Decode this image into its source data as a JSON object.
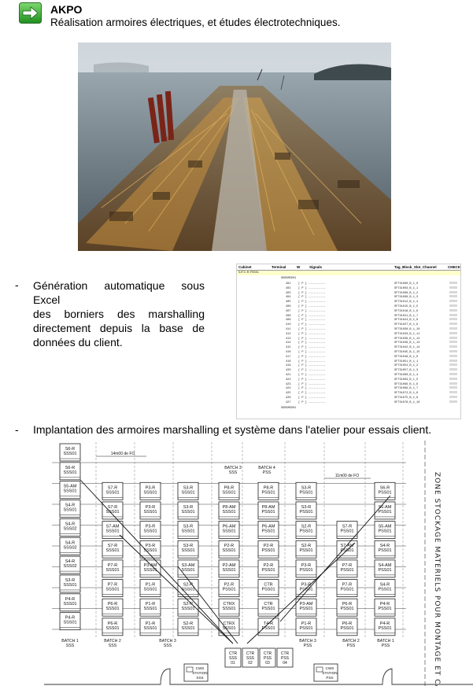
{
  "header": {
    "icon": "green-arrow-right-icon",
    "title": "AKPO",
    "subtitle": "Réalisation armoires électriques, et études électrotechniques."
  },
  "bullets": [
    {
      "dash": "-",
      "lines": [
        "Génération automatique sous Excel",
        "des borniers des marshalling",
        "directement depuis la base de",
        "données du client."
      ]
    },
    {
      "dash": "-",
      "text": "Implantation des armoires marshalling et système dans l'atelier pour essais client."
    }
  ],
  "sheet": {
    "headers": [
      "Cabinet",
      "Terminal",
      "W",
      "Signals",
      "Tag_Block_Slot_Channel",
      "CHECK"
    ],
    "cabinet": "SJF2-M-PSS01",
    "group1": "SDB5M5D01",
    "group2": "SDB5M5D01",
    "tag_prefix": "SFT3"
  },
  "plan": {
    "zone_label": "ZONE STOCKAGE MATERIELS POUR MONTAGE ET CABLAGE",
    "dimension_top_left": "14m00 de FO",
    "dimension_top_right": "11m00 de FO",
    "batch_top": [
      {
        "line1": "BATCH 3",
        "line2": "SSS"
      },
      {
        "line1": "BATCH 4",
        "line2": "PSS"
      }
    ],
    "batch_bottom": [
      {
        "line1": "BATCH 1",
        "line2": "SSS"
      },
      {
        "line1": "BATCH 2",
        "line2": "SSS"
      },
      {
        "line1": "BATCH 3",
        "line2": "SSS"
      },
      {
        "line1": "BATCH 3",
        "line2": "PSS"
      },
      {
        "line1": "BATCH 2",
        "line2": "PSS"
      },
      {
        "line1": "BATCH 1",
        "line2": "PSS"
      }
    ],
    "station_labels": [
      {
        "line1": "CWS",
        "line2": "STATION",
        "line3": "SSS"
      },
      {
        "line1": "CWS",
        "line2": "STATION",
        "line3": "PSS"
      }
    ],
    "bottom_rack": [
      {
        "line1": "CTR",
        "line2": "SSS",
        "line3": "01"
      },
      {
        "line1": "CTR",
        "line2": "SSS",
        "line3": "02"
      },
      {
        "line1": "CTR",
        "line2": "PSS",
        "line3": "03"
      },
      {
        "line1": "CTR",
        "line2": "PSS",
        "line3": "04"
      }
    ],
    "col1": [
      [
        "S6-R",
        "SSS01"
      ],
      [
        "S6-R",
        "SSS01"
      ],
      [
        "S5-AM",
        "SSS01"
      ],
      [
        "S4-R",
        "SSS01"
      ],
      [
        "S4-R",
        "SSS02"
      ],
      [
        "S4-R",
        "SSS02"
      ],
      [
        "S4-R",
        "SSS02"
      ],
      [
        "S3-R",
        "SSS01"
      ],
      [
        "P4-R",
        "SSS01"
      ],
      [
        "P4-R",
        "SSS01"
      ],
      [
        "P4-AM",
        "SSS01"
      ]
    ],
    "col2": [
      [
        "S7-R",
        "SSS01"
      ],
      [
        "S7-R",
        "SSS01"
      ],
      [
        "S7-AM",
        "SSS01"
      ],
      [
        "S7-R",
        "SSS01"
      ],
      [
        "P7-R",
        "SSS01"
      ],
      [
        "P7-R",
        "SSS01"
      ],
      [
        "P6-R",
        "SSS01"
      ],
      [
        "P6-R",
        "SSS01"
      ],
      [
        "P6-AM",
        "SSS01"
      ]
    ],
    "col3": [
      [
        "P3-R",
        "SSS01"
      ],
      [
        "P3-R",
        "SSS01"
      ],
      [
        "P3-R",
        "SSS01"
      ],
      [
        "P3-R",
        "SSS01"
      ],
      [
        "P3-AM",
        "SSS01"
      ],
      [
        "P1-R",
        "SSS01"
      ],
      [
        "P1-R",
        "SSS01"
      ],
      [
        "P1-R",
        "SSS01"
      ],
      [
        "P1-AM",
        "SSS01"
      ]
    ],
    "col4": [
      [
        "S3-R",
        "SSS01"
      ],
      [
        "S3-R",
        "SSS01"
      ],
      [
        "S3-R",
        "SSS01"
      ],
      [
        "S3-R",
        "SSS01"
      ],
      [
        "S3-AM",
        "SSS01"
      ],
      [
        "S2-R",
        "SSS01"
      ],
      [
        "S2-R",
        "SSS01"
      ],
      [
        "S2-R",
        "SSS01"
      ],
      [
        "S2-AM",
        "SSS01"
      ]
    ],
    "col5": [
      [
        "P8-R",
        "SSS01"
      ],
      [
        "P8-AM",
        "SSS01"
      ],
      [
        "P6-AM",
        "SSS01"
      ],
      [
        "P2-R",
        "SSS01"
      ],
      [
        "P2-AM",
        "SSS01"
      ],
      [
        "P2-R",
        "PSS01"
      ],
      [
        "CTRX",
        "SSS01"
      ],
      [
        "CTRX",
        "SSS01"
      ],
      [
        "CTRX",
        "SSS01"
      ]
    ],
    "col6": [
      [
        "P8-R",
        "PSS01"
      ],
      [
        "P8-AM",
        "PSS01"
      ],
      [
        "P6-AM",
        "PSS01"
      ],
      [
        "P2-R",
        "PSS01"
      ],
      [
        "P2-R",
        "PSS01"
      ],
      [
        "CTR",
        "PSS01"
      ],
      [
        "CTR",
        "PSS01"
      ],
      [
        "T4-R",
        "PSS01"
      ]
    ],
    "col7": [
      [
        "S3-R",
        "PSS01"
      ],
      [
        "S3-R",
        "PSS01"
      ],
      [
        "S2-R",
        "PSS01"
      ],
      [
        "S2-R",
        "PSS01"
      ],
      [
        "P3-R",
        "PSS01"
      ],
      [
        "P3-R",
        "PSS01"
      ],
      [
        "P3-AM",
        "PSS01"
      ],
      [
        "P1-R",
        "PSS01"
      ],
      [
        "P1-AM",
        "PSS01"
      ]
    ],
    "col8": [
      [
        "S7-R",
        "PSS01"
      ],
      [
        "S7-AM",
        "PSS01"
      ],
      [
        "P7-R",
        "PSS01"
      ],
      [
        "P7-R",
        "PSS01"
      ],
      [
        "P6-R",
        "PSS01"
      ],
      [
        "P6-R",
        "PSS01"
      ],
      [
        "P6-AM",
        "PSS01"
      ]
    ],
    "col9": [
      [
        "S6-R",
        "PSS01"
      ],
      [
        "S6-AM",
        "PSS01"
      ],
      [
        "S5-AM",
        "PSS01"
      ],
      [
        "S4-R",
        "PSS01"
      ],
      [
        "S4-AM",
        "PSS01"
      ],
      [
        "S4-R",
        "PSS01"
      ],
      [
        "P4-R",
        "PSS01"
      ],
      [
        "P4-R",
        "PSS01"
      ],
      [
        "P4-R",
        "PSS01"
      ],
      [
        "P4-AM",
        "PSS01"
      ]
    ]
  }
}
